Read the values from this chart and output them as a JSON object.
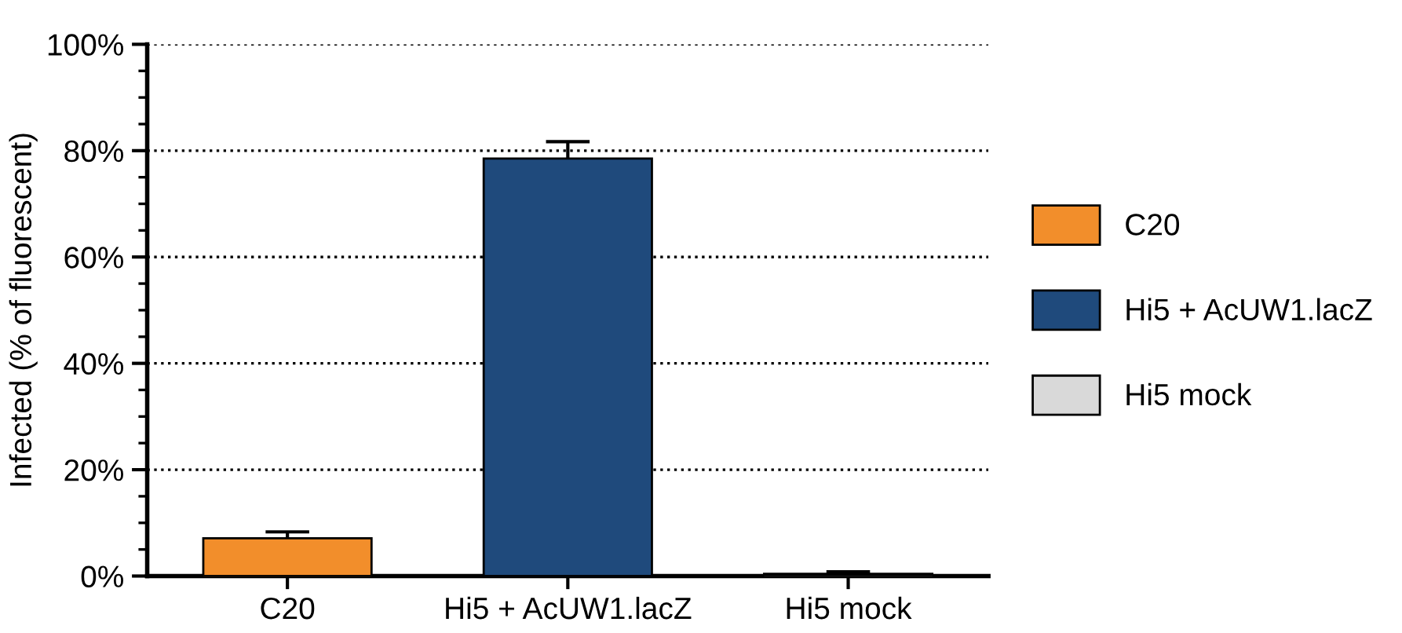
{
  "chart_data": {
    "type": "bar",
    "ylabel": "Infected (% of fluorescent)",
    "categories": [
      "C20",
      "Hi5 + AcUW1.lacZ",
      "Hi5 mock"
    ],
    "series": [
      {
        "name": "C20",
        "color": "#f28e2b",
        "values": [
          7.1,
          null,
          null
        ],
        "errors": [
          1.2,
          null,
          null
        ]
      },
      {
        "name": "Hi5 + AcUW1.lacZ",
        "color": "#1f4a7c",
        "values": [
          null,
          78.5,
          null
        ],
        "errors": [
          null,
          3.2,
          null
        ]
      },
      {
        "name": "Hi5 mock",
        "color": "#d9d9d9",
        "values": [
          null,
          null,
          0.4
        ],
        "errors": [
          null,
          null,
          0.4
        ]
      }
    ],
    "ylim": [
      0,
      100
    ],
    "yticks": [
      {
        "value": 0,
        "label": "0%"
      },
      {
        "value": 20,
        "label": "20%"
      },
      {
        "value": 40,
        "label": "40%"
      },
      {
        "value": 60,
        "label": "60%"
      },
      {
        "value": 80,
        "label": "80%"
      },
      {
        "value": 100,
        "label": "100%"
      }
    ],
    "grid": "y",
    "legend": "right"
  }
}
